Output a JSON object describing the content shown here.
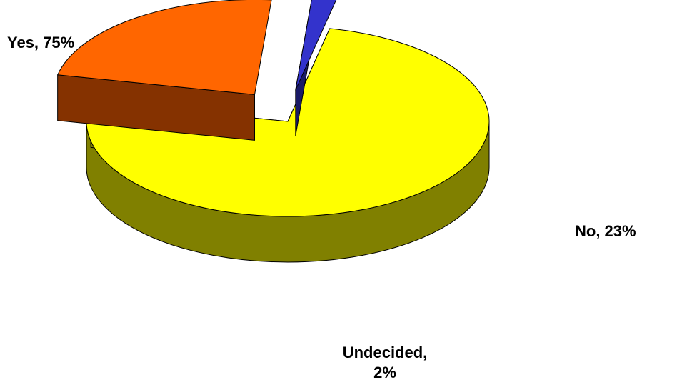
{
  "chart_data": {
    "type": "pie",
    "style": "3d-exploded",
    "slices": [
      {
        "name": "Yes",
        "label": "Yes, 75%",
        "value": 75,
        "color": "#ffff00",
        "side_color": "#808000"
      },
      {
        "name": "No",
        "label": "No, 23%",
        "value": 23,
        "color": "#ff6600",
        "side_color": "#853200"
      },
      {
        "name": "Undecided",
        "label": "Undecided, 2%",
        "label_line1": "Undecided,",
        "label_line2": "2%",
        "value": 2,
        "color": "#3333cc",
        "side_color": "#1a1a66"
      }
    ],
    "title": "",
    "legend": "none"
  }
}
